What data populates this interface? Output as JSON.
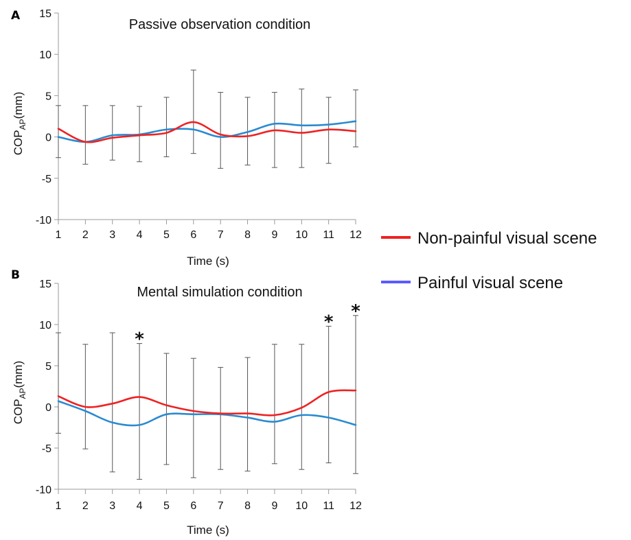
{
  "chart_data": [
    {
      "panel": "A",
      "type": "line",
      "title": "Passive observation condition",
      "xlabel": "Time (s)",
      "ylabel_main": "COP",
      "ylabel_sub": "AP",
      "ylabel_unit": "(mm)",
      "x": [
        1,
        2,
        3,
        4,
        5,
        6,
        7,
        8,
        9,
        10,
        11,
        12
      ],
      "xticks": [
        "1",
        "2",
        "3",
        "4",
        "5",
        "6",
        "7",
        "8",
        "9",
        "10",
        "11",
        "12"
      ],
      "yticks": [
        "15",
        "10",
        "5",
        "0",
        "-5",
        "-10"
      ],
      "ylim": [
        -10,
        15
      ],
      "series": [
        {
          "name": "Non-painful visual scene",
          "color": "#ee2222",
          "values": [
            1.0,
            -0.6,
            -0.1,
            0.2,
            0.5,
            1.8,
            0.3,
            0.1,
            0.8,
            0.5,
            0.9,
            0.7
          ]
        },
        {
          "name": "Painful visual scene",
          "color": "#2a8ad0",
          "values": [
            0.0,
            -0.6,
            0.2,
            0.3,
            0.9,
            0.9,
            0.0,
            0.6,
            1.6,
            1.4,
            1.5,
            1.9
          ]
        }
      ],
      "error_bars": [
        {
          "upper": 3.8,
          "lower": -2.5
        },
        {
          "upper": 3.8,
          "lower": -3.3
        },
        {
          "upper": 3.8,
          "lower": -2.8
        },
        {
          "upper": 3.7,
          "lower": -3.0
        },
        {
          "upper": 4.8,
          "lower": -2.4
        },
        {
          "upper": 8.1,
          "lower": -2.0
        },
        {
          "upper": 5.4,
          "lower": -3.8
        },
        {
          "upper": 4.8,
          "lower": -3.4
        },
        {
          "upper": 5.4,
          "lower": -3.7
        },
        {
          "upper": 5.8,
          "lower": -3.7
        },
        {
          "upper": 4.8,
          "lower": -3.2
        },
        {
          "upper": 5.7,
          "lower": -1.2
        }
      ],
      "significance": []
    },
    {
      "panel": "B",
      "type": "line",
      "title": "Mental simulation condition",
      "xlabel": "Time (s)",
      "ylabel_main": "COP",
      "ylabel_sub": "AP",
      "ylabel_unit": "(mm)",
      "x": [
        1,
        2,
        3,
        4,
        5,
        6,
        7,
        8,
        9,
        10,
        11,
        12
      ],
      "xticks": [
        "1",
        "2",
        "3",
        "4",
        "5",
        "6",
        "7",
        "8",
        "9",
        "10",
        "11",
        "12"
      ],
      "yticks": [
        "15",
        "10",
        "5",
        "0",
        "-5",
        "-10"
      ],
      "ylim": [
        -10,
        15
      ],
      "series": [
        {
          "name": "Non-painful visual scene",
          "color": "#ee2222",
          "values": [
            1.3,
            0.0,
            0.4,
            1.2,
            0.2,
            -0.5,
            -0.8,
            -0.8,
            -1.0,
            -0.1,
            1.8,
            2.0
          ]
        },
        {
          "name": "Painful visual scene",
          "color": "#2a8ad0",
          "values": [
            0.7,
            -0.5,
            -1.9,
            -2.2,
            -0.9,
            -0.9,
            -0.9,
            -1.3,
            -1.8,
            -1.0,
            -1.3,
            -2.2
          ]
        }
      ],
      "error_bars": [
        {
          "upper": 9.0,
          "lower": -3.2
        },
        {
          "upper": 7.6,
          "lower": -5.1
        },
        {
          "upper": 9.0,
          "lower": -7.9
        },
        {
          "upper": 7.7,
          "lower": -8.8
        },
        {
          "upper": 6.5,
          "lower": -7.0
        },
        {
          "upper": 5.9,
          "lower": -8.6
        },
        {
          "upper": 4.8,
          "lower": -7.6
        },
        {
          "upper": 6.0,
          "lower": -7.8
        },
        {
          "upper": 7.6,
          "lower": -6.9
        },
        {
          "upper": 7.6,
          "lower": -7.6
        },
        {
          "upper": 9.8,
          "lower": -6.8
        },
        {
          "upper": 11.1,
          "lower": -8.1
        }
      ],
      "significance": [
        {
          "x": 4,
          "label": "*"
        },
        {
          "x": 11,
          "label": "*"
        },
        {
          "x": 12,
          "label": "*"
        }
      ]
    }
  ],
  "legend": {
    "items": [
      {
        "label": "Non-painful visual scene",
        "color": "#ee2222"
      },
      {
        "label": "Painful visual scene",
        "color": "#5a5aff"
      }
    ]
  }
}
